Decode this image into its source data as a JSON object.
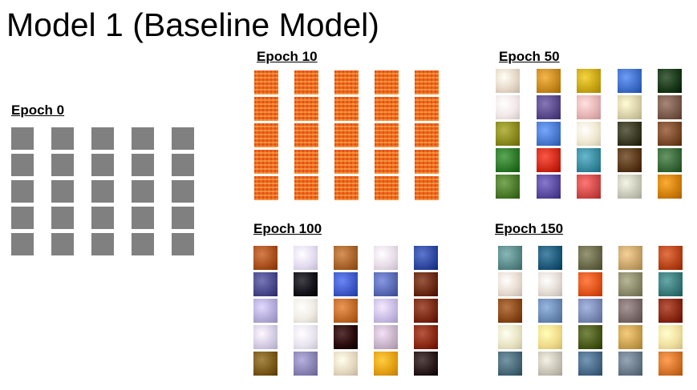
{
  "title": "Model 1 (Baseline Model)",
  "panels": [
    {
      "id": "epoch-0",
      "label": "Epoch 0",
      "style": "gray",
      "tiles": [
        "#808080"
      ]
    },
    {
      "id": "epoch-10",
      "label": "Epoch 10",
      "style": "orange",
      "tiles": [
        "#f0661e"
      ]
    },
    {
      "id": "epoch-50",
      "label": "Epoch 50",
      "style": "color",
      "tiles": [
        "#e6d8c8",
        "#c8891e",
        "#c8a614",
        "#3f6fc8",
        "#1a3a1a",
        "#f2e8e8",
        "#5a4a8c",
        "#e6b4b4",
        "#d8d0a8",
        "#7a5a4a",
        "#8a8a1e",
        "#4a7ad0",
        "#f0e8d0",
        "#3a3a24",
        "#7a4a2a",
        "#2f7a2a",
        "#d02a1a",
        "#3a8aa0",
        "#5a3a1a",
        "#3a6a3a",
        "#4a7a2a",
        "#5a4aa0",
        "#d04a4a",
        "#c8c8b8",
        "#d0800a"
      ]
    },
    {
      "id": "epoch-100",
      "label": "Epoch 100",
      "style": "color",
      "tiles": [
        "#a8501e",
        "#e4dcf0",
        "#a8642a",
        "#e8dce8",
        "#2f4aa0",
        "#4a4a8a",
        "#14141a",
        "#3f5ac8",
        "#5a6ab4",
        "#6a2a14",
        "#b4acd8",
        "#f0ece4",
        "#c06a2a",
        "#c8bce4",
        "#7a2a14",
        "#d4cce4",
        "#e8e4f0",
        "#2a0a0a",
        "#c8b4c8",
        "#8a2a14",
        "#7a5a1a",
        "#8a84b4",
        "#e4d8c0",
        "#e4a014",
        "#2a1a1a"
      ]
    },
    {
      "id": "epoch-150",
      "label": "Epoch 150",
      "style": "color",
      "tiles": [
        "#5a8a8a",
        "#1f5a7a",
        "#6a6a4a",
        "#c8a46a",
        "#b8441a",
        "#e8dcd0",
        "#e4dcd4",
        "#e0541a",
        "#8a8a6a",
        "#3a7a7a",
        "#8a4a1a",
        "#6a8ab4",
        "#7a8ab4",
        "#7a6a6a",
        "#8a2a14",
        "#e8e4c4",
        "#f0dc8a",
        "#4a5a1a",
        "#c8a050",
        "#f0e0a0",
        "#4a6a7a",
        "#c8c4b8",
        "#4a6a8a",
        "#6a7a8a",
        "#d4742a"
      ]
    }
  ]
}
